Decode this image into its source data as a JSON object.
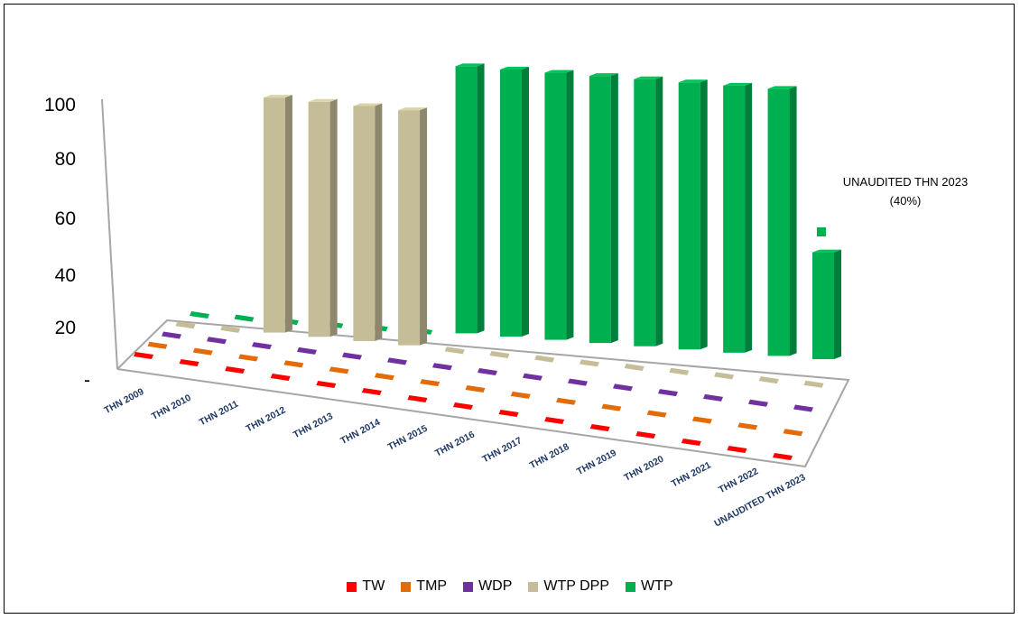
{
  "chart_data": {
    "type": "bar",
    "subtype": "3d-column",
    "categories": [
      "THN 2009",
      "THN 2010",
      "THN 2011",
      "THN 2012",
      "THN 2013",
      "THN 2014",
      "THN 2015",
      "THN 2016",
      "THN 2017",
      "THN 2018",
      "THN 2019",
      "THN 2020",
      "THN 2021",
      "THN 2022",
      "UNAUDITED THN 2023"
    ],
    "series": [
      {
        "name": "TW",
        "color": "#ff0000",
        "values": [
          0,
          0,
          0,
          0,
          0,
          0,
          0,
          0,
          0,
          0,
          0,
          0,
          0,
          0,
          0
        ]
      },
      {
        "name": "TMP",
        "color": "#e36c09",
        "values": [
          0,
          0,
          0,
          0,
          0,
          0,
          0,
          0,
          0,
          0,
          0,
          0,
          0,
          0,
          0
        ]
      },
      {
        "name": "WDP",
        "color": "#7030a0",
        "values": [
          0,
          0,
          0,
          0,
          0,
          0,
          0,
          0,
          0,
          0,
          0,
          0,
          0,
          0,
          0
        ]
      },
      {
        "name": "WTP DPP",
        "color": "#c4bd97",
        "values": [
          0,
          0,
          88,
          88,
          88,
          88,
          0,
          0,
          0,
          0,
          0,
          0,
          0,
          0,
          0
        ]
      },
      {
        "name": "WTP",
        "color": "#00b050",
        "values": [
          0,
          0,
          0,
          0,
          0,
          0,
          100,
          100,
          100,
          100,
          100,
          100,
          100,
          100,
          40
        ]
      }
    ],
    "yticks": [
      "-",
      "20",
      "40",
      "60",
      "80",
      "100"
    ],
    "ylim": [
      0,
      100
    ],
    "annotation": {
      "line1": "UNAUDITED THN 2023",
      "line2": "(40%)"
    },
    "legend_position": "bottom"
  }
}
